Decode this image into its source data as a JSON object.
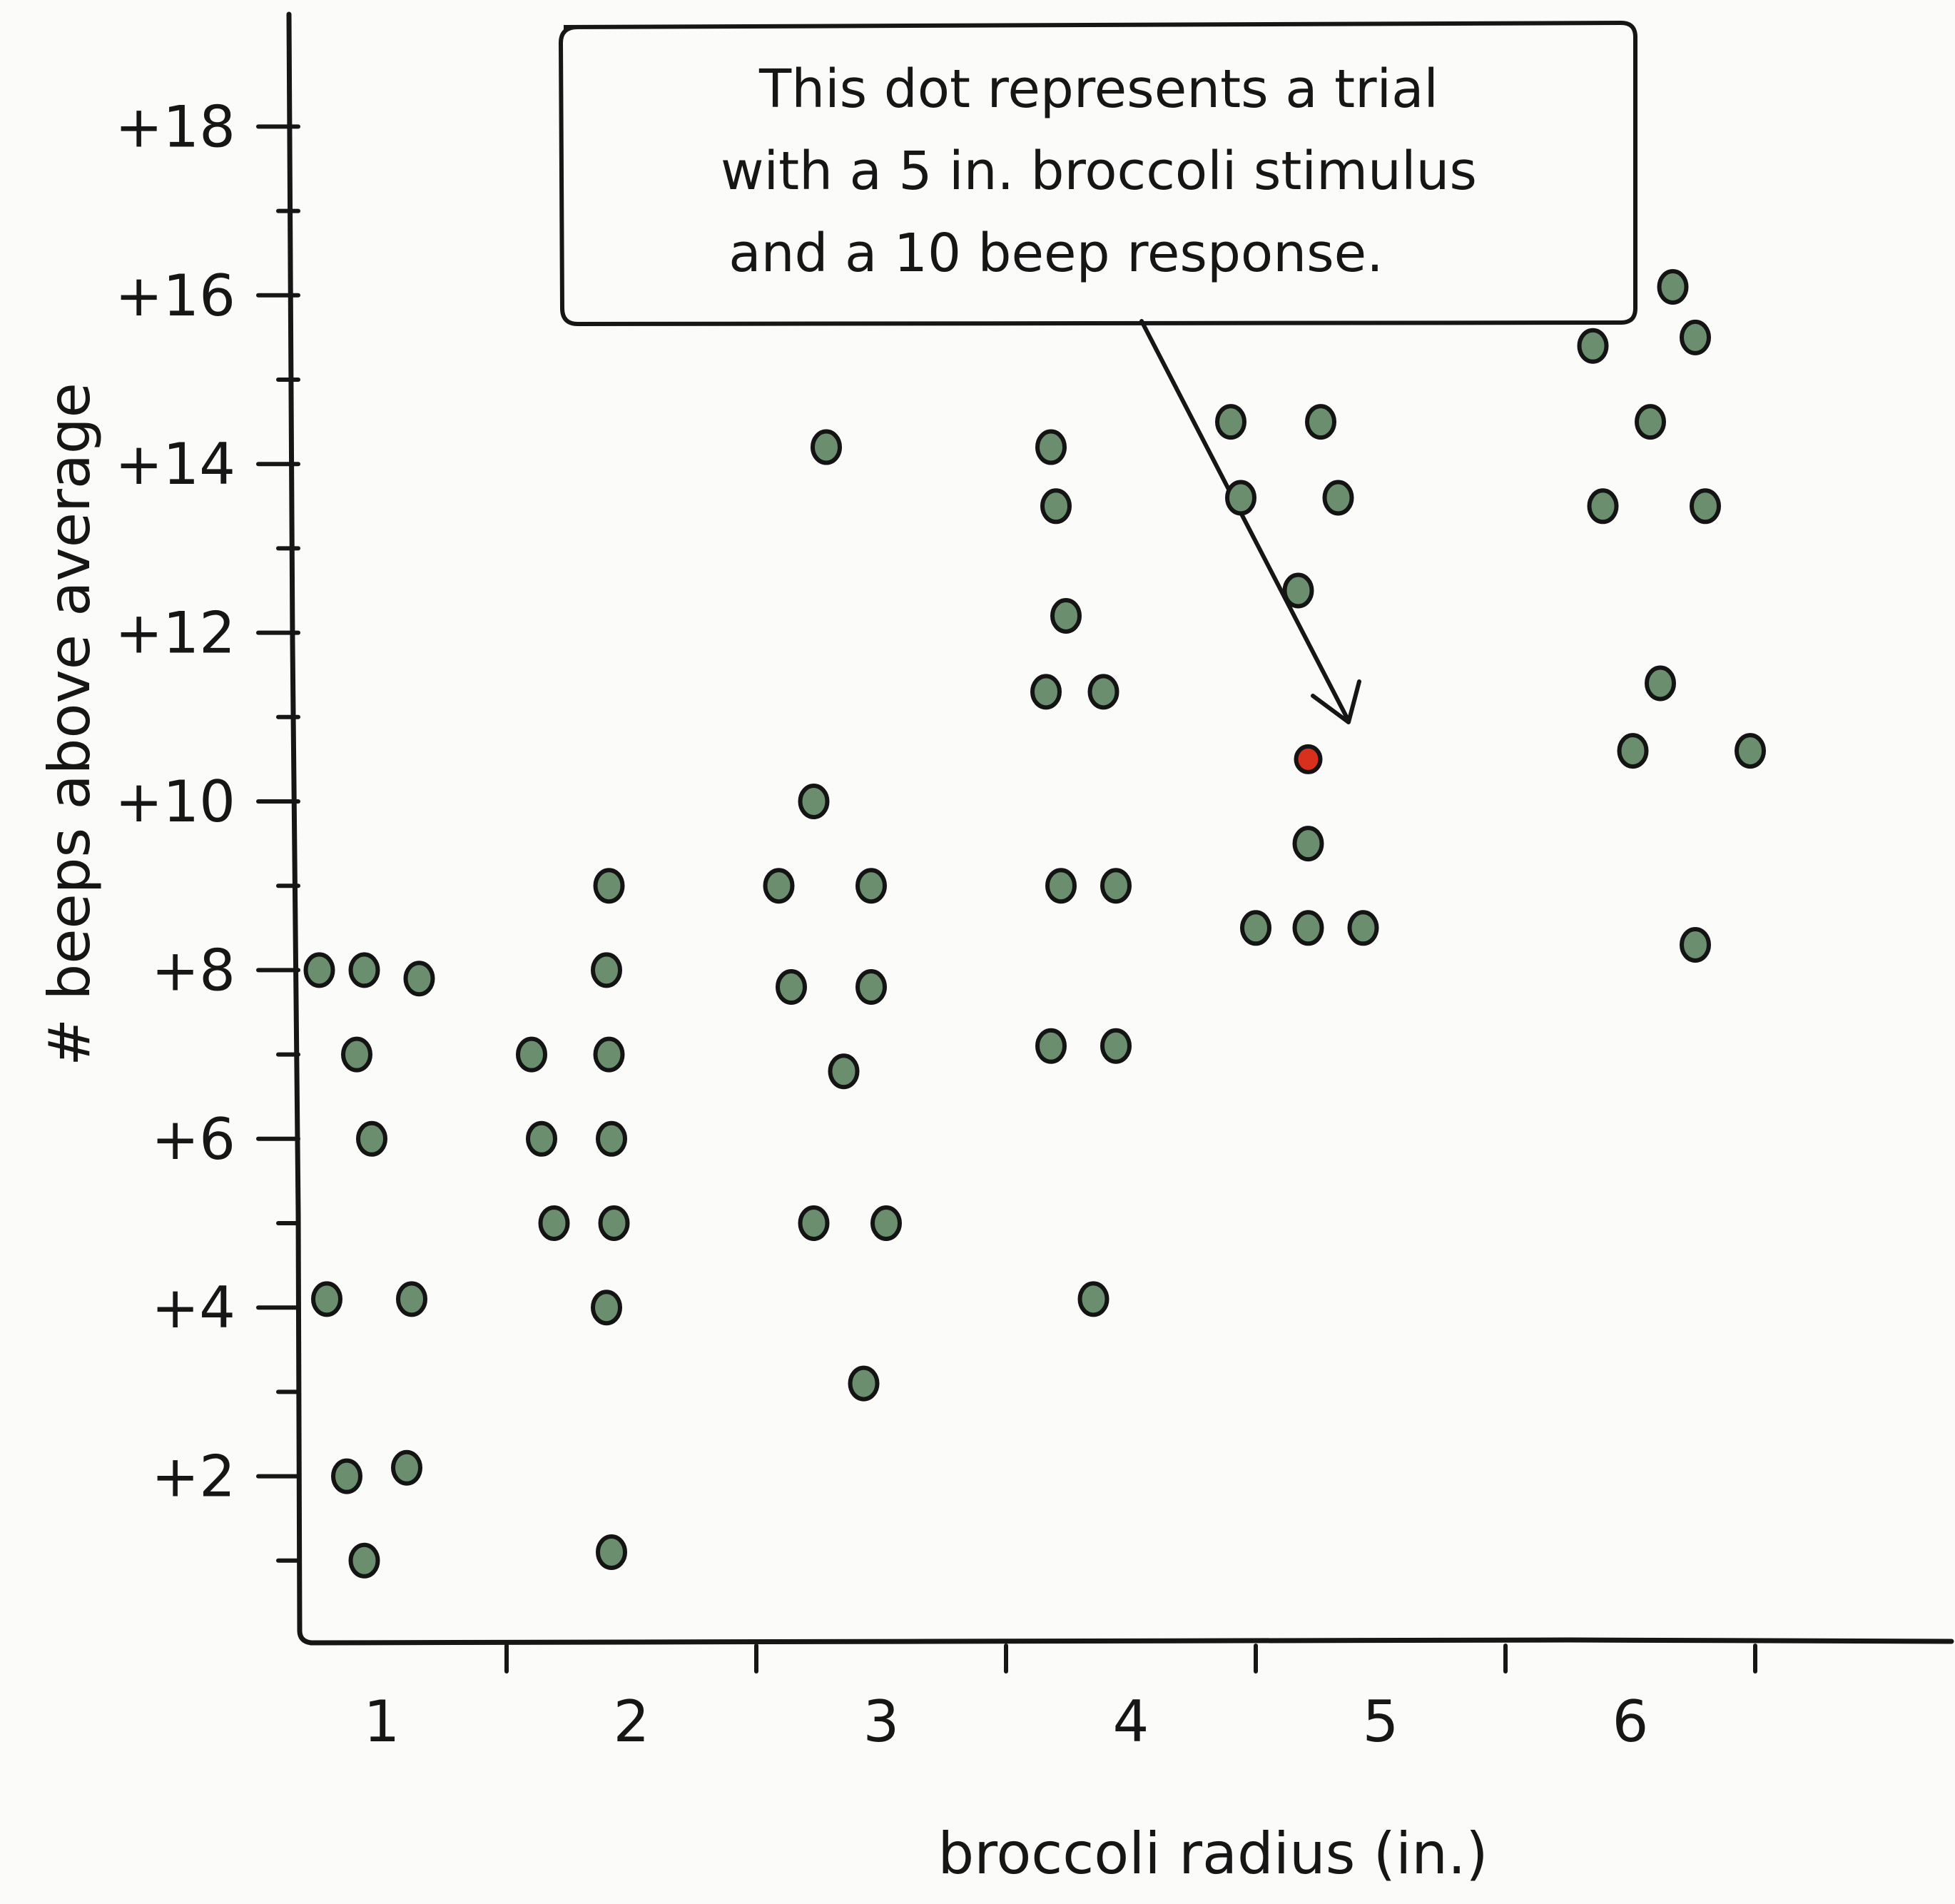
{
  "chart_data": {
    "type": "scatter",
    "xlabel": "broccoli radius (in.)",
    "ylabel": "# beeps above average",
    "xlim": [
      0.5,
      7
    ],
    "ylim": [
      0,
      19
    ],
    "x_ticks": [
      1,
      2,
      3,
      4,
      5,
      6
    ],
    "x_tick_labels": [
      "1",
      "2",
      "3",
      "4",
      "5",
      "6"
    ],
    "y_ticks": [
      2,
      4,
      6,
      8,
      10,
      12,
      14,
      16,
      18
    ],
    "y_tick_labels": [
      "+2",
      "+4",
      "+6",
      "+8",
      "+10",
      "+12",
      "+14",
      "+16",
      "+18"
    ],
    "grid": false,
    "points": [
      {
        "x": 0.75,
        "y": 8.0
      },
      {
        "x": 0.93,
        "y": 8.0
      },
      {
        "x": 1.15,
        "y": 7.9
      },
      {
        "x": 0.9,
        "y": 7.0
      },
      {
        "x": 0.96,
        "y": 6.0
      },
      {
        "x": 0.78,
        "y": 4.1
      },
      {
        "x": 1.12,
        "y": 4.1
      },
      {
        "x": 0.86,
        "y": 2.0
      },
      {
        "x": 1.1,
        "y": 2.1
      },
      {
        "x": 0.93,
        "y": 1.0
      },
      {
        "x": 1.91,
        "y": 9.0
      },
      {
        "x": 1.9,
        "y": 8.0
      },
      {
        "x": 1.6,
        "y": 7.0
      },
      {
        "x": 1.91,
        "y": 7.0
      },
      {
        "x": 1.64,
        "y": 6.0
      },
      {
        "x": 1.92,
        "y": 6.0
      },
      {
        "x": 1.69,
        "y": 5.0
      },
      {
        "x": 1.93,
        "y": 5.0
      },
      {
        "x": 1.9,
        "y": 4.0
      },
      {
        "x": 1.92,
        "y": 1.1
      },
      {
        "x": 2.78,
        "y": 14.2
      },
      {
        "x": 2.73,
        "y": 10.0
      },
      {
        "x": 2.59,
        "y": 9.0
      },
      {
        "x": 2.96,
        "y": 9.0
      },
      {
        "x": 2.64,
        "y": 7.8
      },
      {
        "x": 2.96,
        "y": 7.8
      },
      {
        "x": 2.85,
        "y": 6.8
      },
      {
        "x": 2.73,
        "y": 5.0
      },
      {
        "x": 3.02,
        "y": 5.0
      },
      {
        "x": 2.93,
        "y": 3.1
      },
      {
        "x": 3.68,
        "y": 14.2
      },
      {
        "x": 3.7,
        "y": 13.5
      },
      {
        "x": 3.74,
        "y": 12.2
      },
      {
        "x": 3.66,
        "y": 11.3
      },
      {
        "x": 3.89,
        "y": 11.3
      },
      {
        "x": 3.72,
        "y": 9.0
      },
      {
        "x": 3.94,
        "y": 9.0
      },
      {
        "x": 3.68,
        "y": 7.1
      },
      {
        "x": 3.94,
        "y": 7.1
      },
      {
        "x": 3.85,
        "y": 4.1
      },
      {
        "x": 4.4,
        "y": 14.5
      },
      {
        "x": 4.76,
        "y": 14.5
      },
      {
        "x": 4.44,
        "y": 13.6
      },
      {
        "x": 4.83,
        "y": 13.6
      },
      {
        "x": 4.67,
        "y": 12.5
      },
      {
        "x": 4.71,
        "y": 10.5,
        "highlight": true
      },
      {
        "x": 4.71,
        "y": 9.5
      },
      {
        "x": 4.5,
        "y": 8.5
      },
      {
        "x": 4.71,
        "y": 8.5
      },
      {
        "x": 4.93,
        "y": 8.5
      },
      {
        "x": 6.17,
        "y": 16.1
      },
      {
        "x": 5.85,
        "y": 15.4
      },
      {
        "x": 6.26,
        "y": 15.5
      },
      {
        "x": 6.08,
        "y": 14.5
      },
      {
        "x": 5.89,
        "y": 13.5
      },
      {
        "x": 6.3,
        "y": 13.5
      },
      {
        "x": 6.12,
        "y": 11.4
      },
      {
        "x": 6.01,
        "y": 10.6
      },
      {
        "x": 6.48,
        "y": 10.6
      },
      {
        "x": 6.26,
        "y": 8.3
      }
    ],
    "annotation": {
      "lines": [
        "This dot represents  a trial",
        "with a  5 in. broccoli stimulus",
        "and a 10 beep response."
      ],
      "points_to": {
        "x": 4.71,
        "y": 10.5
      }
    }
  },
  "colors": {
    "dot_fill": "#6b8f6e",
    "dot_stroke": "#141414",
    "highlight_fill": "#d8301c",
    "ink": "#161616",
    "background": "#fbfbf9"
  }
}
